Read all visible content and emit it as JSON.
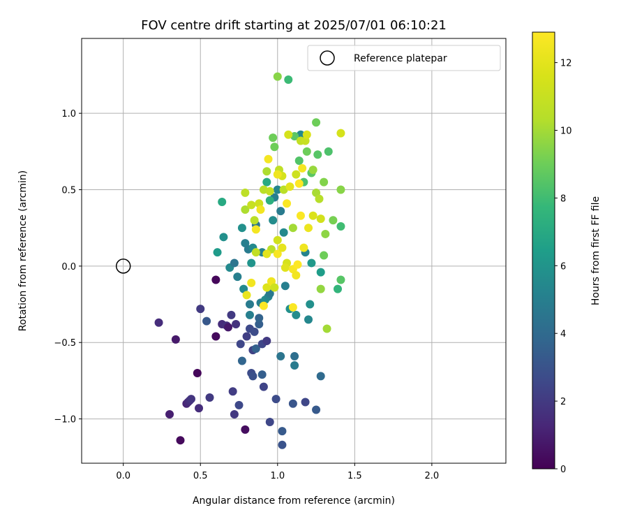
{
  "chart_data": {
    "type": "scatter",
    "title": "FOV centre drift starting at 2025/07/01 06:10:21",
    "xlabel": "Angular distance from reference (arcmin)",
    "ylabel": "Rotation from reference (arcmin)",
    "xlim": [
      -0.27,
      2.48
    ],
    "ylim": [
      -1.29,
      1.49
    ],
    "xticks": [
      0.0,
      0.5,
      1.0,
      1.5,
      2.0
    ],
    "xtick_labels": [
      "0.0",
      "0.5",
      "1.0",
      "1.5",
      "2.0"
    ],
    "yticks": [
      -1.0,
      -0.5,
      0.0,
      0.5,
      1.0
    ],
    "ytick_labels": [
      "−1.0",
      "−0.5",
      "0.0",
      "0.5",
      "1.0"
    ],
    "grid": true,
    "legend": {
      "position": "top-right",
      "entries": [
        "Reference platepar"
      ]
    },
    "reference_point": {
      "x": 0.0,
      "y": 0.0
    },
    "colorbar": {
      "label": "Hours from first FF file",
      "min": 0,
      "max": 12.9,
      "ticks": [
        0,
        2,
        4,
        6,
        8,
        10,
        12
      ],
      "tick_labels": [
        "0",
        "2",
        "4",
        "6",
        "8",
        "10",
        "12"
      ],
      "colormap": "viridis"
    },
    "points": [
      [
        0.23,
        -0.37,
        1.5
      ],
      [
        0.3,
        -0.97,
        1.0
      ],
      [
        0.34,
        -0.48,
        0.8
      ],
      [
        0.37,
        -1.14,
        0.3
      ],
      [
        0.41,
        -0.9,
        1.2
      ],
      [
        0.42,
        -0.89,
        1.4
      ],
      [
        0.43,
        -0.88,
        1.6
      ],
      [
        0.44,
        -0.87,
        1.8
      ],
      [
        0.48,
        -0.7,
        0.2
      ],
      [
        0.49,
        -0.93,
        1.5
      ],
      [
        0.5,
        -0.28,
        2.0
      ],
      [
        0.54,
        -0.36,
        3.2
      ],
      [
        0.56,
        -0.86,
        2.0
      ],
      [
        0.6,
        -0.09,
        0.2
      ],
      [
        0.6,
        -0.46,
        0.3
      ],
      [
        0.64,
        -0.38,
        1.5
      ],
      [
        0.67,
        -0.39,
        1.7
      ],
      [
        0.68,
        -0.4,
        0.8
      ],
      [
        0.7,
        -0.32,
        2.0
      ],
      [
        0.71,
        -0.82,
        2.1
      ],
      [
        0.72,
        -0.97,
        1.9
      ],
      [
        0.73,
        -0.38,
        1.7
      ],
      [
        0.75,
        -0.91,
        2.6
      ],
      [
        0.76,
        -0.51,
        2.5
      ],
      [
        0.77,
        -0.62,
        3.8
      ],
      [
        0.79,
        -1.07,
        0.4
      ],
      [
        0.8,
        -0.46,
        2.2
      ],
      [
        0.82,
        -0.41,
        2.6
      ],
      [
        0.83,
        -0.7,
        2.7
      ],
      [
        0.84,
        -0.72,
        2.9
      ],
      [
        0.84,
        -0.55,
        2.3
      ],
      [
        0.85,
        -0.43,
        2.7
      ],
      [
        0.86,
        -0.54,
        3.6
      ],
      [
        0.88,
        -0.38,
        3.5
      ],
      [
        0.88,
        -0.34,
        3.7
      ],
      [
        0.9,
        -0.71,
        3.5
      ],
      [
        0.9,
        -0.51,
        2.5
      ],
      [
        0.91,
        -0.79,
        2.4
      ],
      [
        0.93,
        -0.49,
        2.0
      ],
      [
        0.95,
        -1.02,
        2.5
      ],
      [
        0.99,
        -0.87,
        2.7
      ],
      [
        1.02,
        -0.59,
        4.5
      ],
      [
        1.03,
        -1.08,
        3.3
      ],
      [
        1.03,
        -1.17,
        3.0
      ],
      [
        1.1,
        -0.9,
        3.1
      ],
      [
        1.11,
        -0.59,
        4.2
      ],
      [
        1.11,
        -0.65,
        4.8
      ],
      [
        1.18,
        -0.89,
        2.5
      ],
      [
        1.25,
        -0.94,
        3.3
      ],
      [
        1.28,
        -0.72,
        4.0
      ],
      [
        0.64,
        0.42,
        7.0
      ],
      [
        0.65,
        0.19,
        5.8
      ],
      [
        0.61,
        0.09,
        6.3
      ],
      [
        0.69,
        -0.01,
        5.5
      ],
      [
        0.72,
        0.02,
        4.5
      ],
      [
        0.74,
        -0.07,
        5.0
      ],
      [
        0.77,
        0.25,
        5.8
      ],
      [
        0.78,
        -0.15,
        5.5
      ],
      [
        0.79,
        0.15,
        5.0
      ],
      [
        0.81,
        0.11,
        4.8
      ],
      [
        0.82,
        -0.32,
        5.0
      ],
      [
        0.82,
        -0.25,
        4.8
      ],
      [
        0.83,
        0.02,
        6.0
      ],
      [
        0.84,
        0.12,
        5.5
      ],
      [
        0.86,
        0.27,
        4.5
      ],
      [
        0.89,
        -0.24,
        5.0
      ],
      [
        0.9,
        0.09,
        5.2
      ],
      [
        0.92,
        -0.22,
        5.6
      ],
      [
        0.94,
        -0.2,
        5.3
      ],
      [
        0.95,
        -0.18,
        4.7
      ],
      [
        0.97,
        0.3,
        5.6
      ],
      [
        0.98,
        0.45,
        5.0
      ],
      [
        1.0,
        0.5,
        5.3
      ],
      [
        1.02,
        0.36,
        4.8
      ],
      [
        1.04,
        0.22,
        5.5
      ],
      [
        1.05,
        -0.13,
        5.0
      ],
      [
        1.08,
        -0.28,
        5.8
      ],
      [
        1.12,
        -0.32,
        5.6
      ],
      [
        1.15,
        0.86,
        5.5
      ],
      [
        1.18,
        0.09,
        5.2
      ],
      [
        1.2,
        -0.35,
        5.4
      ],
      [
        1.21,
        -0.25,
        5.8
      ],
      [
        1.22,
        0.02,
        6.2
      ],
      [
        1.28,
        -0.04,
        6.4
      ],
      [
        1.39,
        -0.15,
        7.6
      ],
      [
        0.93,
        0.55,
        7.0
      ],
      [
        0.95,
        0.43,
        7.3
      ],
      [
        0.98,
        0.78,
        9.0
      ],
      [
        1.0,
        1.24,
        9.5
      ],
      [
        1.07,
        1.22,
        7.9
      ],
      [
        1.11,
        0.85,
        8.6
      ],
      [
        1.14,
        0.69,
        8.4
      ],
      [
        1.17,
        0.55,
        8.3
      ],
      [
        1.19,
        0.75,
        9.0
      ],
      [
        1.22,
        0.61,
        8.6
      ],
      [
        1.25,
        0.94,
        9.0
      ],
      [
        1.26,
        0.73,
        8.5
      ],
      [
        1.3,
        0.55,
        9.4
      ],
      [
        1.33,
        0.75,
        8.3
      ],
      [
        1.36,
        0.3,
        9.2
      ],
      [
        1.41,
        0.26,
        8.0
      ],
      [
        1.41,
        0.5,
        9.5
      ],
      [
        1.41,
        -0.09,
        8.5
      ],
      [
        1.32,
        -0.41,
        10.0
      ],
      [
        1.28,
        -0.15,
        9.7
      ],
      [
        1.3,
        0.07,
        9.0
      ],
      [
        1.31,
        0.21,
        9.6
      ],
      [
        1.23,
        0.63,
        9.8
      ],
      [
        1.25,
        0.48,
        10.1
      ],
      [
        1.27,
        0.44,
        10.4
      ],
      [
        0.79,
        0.37,
        10.2
      ],
      [
        0.79,
        0.48,
        10.6
      ],
      [
        0.83,
        0.4,
        11.0
      ],
      [
        0.85,
        0.3,
        10.5
      ],
      [
        0.86,
        0.09,
        10.8
      ],
      [
        0.88,
        0.41,
        11.2
      ],
      [
        0.91,
        0.5,
        10.5
      ],
      [
        0.93,
        0.62,
        10.2
      ],
      [
        0.95,
        0.49,
        10.8
      ],
      [
        0.97,
        0.84,
        9.0
      ],
      [
        1.01,
        0.63,
        10.7
      ],
      [
        1.03,
        0.59,
        11.5
      ],
      [
        1.04,
        0.5,
        10.5
      ],
      [
        1.07,
        0.86,
        11.5
      ],
      [
        1.1,
        0.25,
        10.0
      ],
      [
        1.12,
        0.6,
        11.2
      ],
      [
        1.15,
        0.82,
        10.8
      ],
      [
        1.18,
        0.82,
        11.0
      ],
      [
        1.19,
        0.86,
        11.7
      ],
      [
        1.23,
        0.33,
        11.7
      ],
      [
        1.28,
        0.31,
        11.4
      ],
      [
        1.41,
        0.87,
        11.5
      ],
      [
        1.0,
        0.17,
        11.3
      ],
      [
        0.96,
        0.11,
        10.5
      ],
      [
        1.06,
        0.02,
        11.5
      ],
      [
        0.8,
        -0.19,
        12.2
      ],
      [
        0.83,
        -0.11,
        12.5
      ],
      [
        0.86,
        0.24,
        12.6
      ],
      [
        0.89,
        0.37,
        12.5
      ],
      [
        0.93,
        -0.14,
        11.8
      ],
      [
        0.93,
        0.08,
        12.0
      ],
      [
        0.94,
        0.7,
        12.6
      ],
      [
        0.96,
        -0.1,
        12.4
      ],
      [
        0.98,
        -0.14,
        11.2
      ],
      [
        1.0,
        0.6,
        12.4
      ],
      [
        1.0,
        0.08,
        12.7
      ],
      [
        1.03,
        0.12,
        12.1
      ],
      [
        1.05,
        -0.01,
        11.9
      ],
      [
        1.06,
        0.41,
        12.8
      ],
      [
        1.08,
        0.52,
        12.0
      ],
      [
        1.1,
        -0.02,
        12.7
      ],
      [
        1.1,
        -0.27,
        12.8
      ],
      [
        1.12,
        -0.06,
        12.5
      ],
      [
        1.13,
        0.01,
        12.9
      ],
      [
        1.14,
        0.54,
        12.9
      ],
      [
        1.15,
        0.33,
        12.8
      ],
      [
        1.16,
        0.64,
        12.6
      ],
      [
        1.17,
        0.12,
        12.4
      ],
      [
        0.91,
        -0.26,
        12.9
      ],
      [
        1.2,
        0.25,
        12.3
      ]
    ]
  }
}
